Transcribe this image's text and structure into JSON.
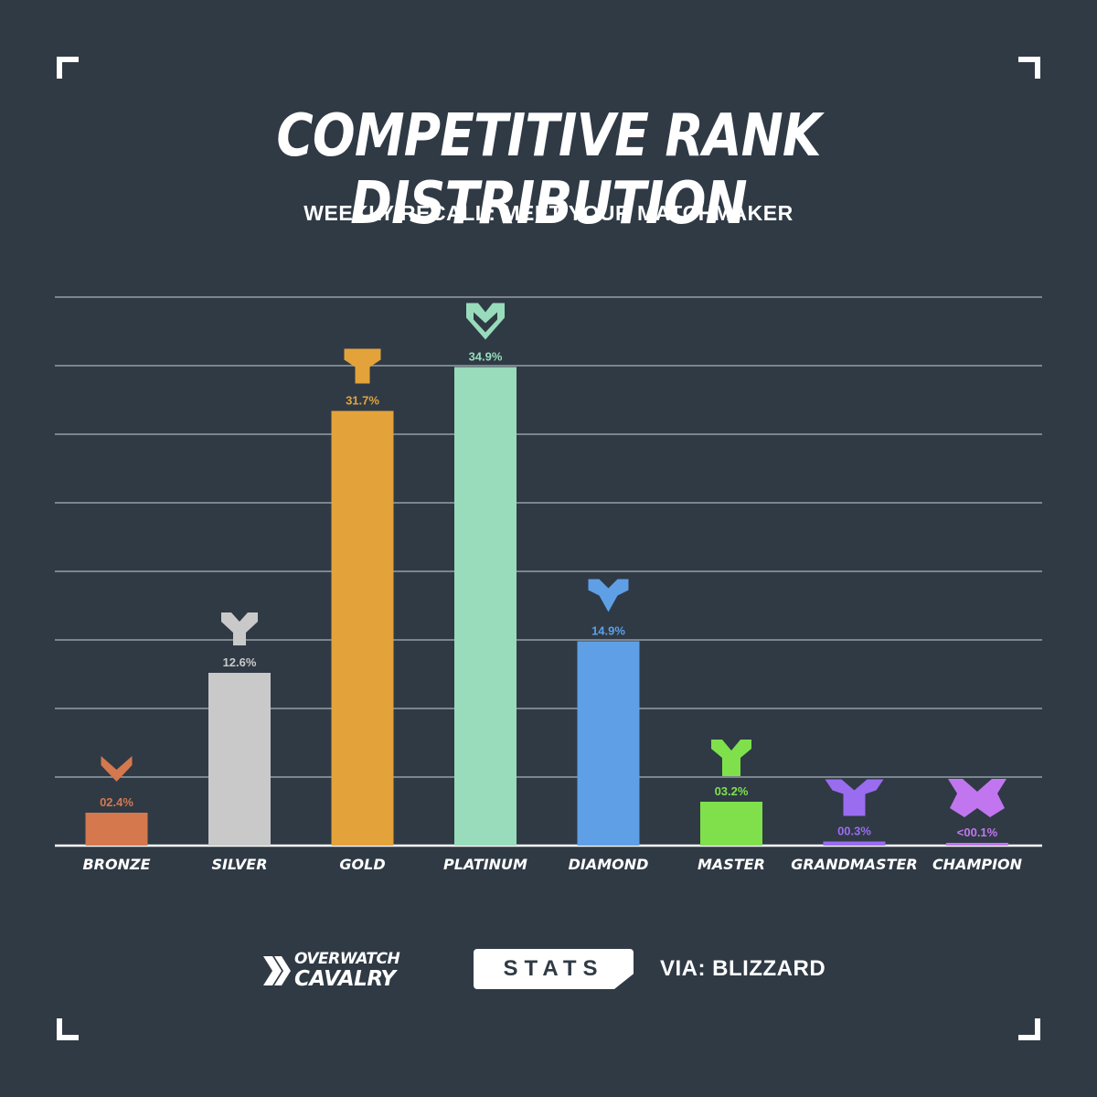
{
  "header": {
    "title": "COMPETITIVE RANK DISTRIBUTION",
    "subtitle": "WEEKLY RECALL: MEET YOUR MATCHMAKER"
  },
  "chart_data": {
    "type": "bar",
    "title": "COMPETITIVE RANK DISTRIBUTION",
    "subtitle": "WEEKLY RECALL: MEET YOUR MATCHMAKER",
    "categories": [
      "BRONZE",
      "SILVER",
      "GOLD",
      "PLATINUM",
      "DIAMOND",
      "MASTER",
      "GRANDMASTER",
      "CHAMPION"
    ],
    "values": [
      2.4,
      12.6,
      31.7,
      34.9,
      14.9,
      3.2,
      0.3,
      0.1
    ],
    "value_labels": [
      "02.4%",
      "12.6%",
      "31.7%",
      "34.9%",
      "14.9%",
      "03.2%",
      "00.3%",
      "<00.1%"
    ],
    "colors": [
      "#d5784e",
      "#c9c9c9",
      "#e3a33a",
      "#98dcbc",
      "#5f9fe6",
      "#7fe04c",
      "#9a6cf0",
      "#c176f0"
    ],
    "icons": [
      "bronze-rank-icon",
      "silver-rank-icon",
      "gold-rank-icon",
      "platinum-rank-icon",
      "diamond-rank-icon",
      "master-rank-icon",
      "grandmaster-rank-icon",
      "champion-rank-icon"
    ],
    "xlabel": "",
    "ylabel": "",
    "ylim": [
      0,
      40
    ],
    "grid": true,
    "legend": "none"
  },
  "footer": {
    "brand_line1": "OVERWATCH",
    "brand_line2": "CAVALRY",
    "badge": "STATS",
    "source": "VIA: BLIZZARD"
  }
}
